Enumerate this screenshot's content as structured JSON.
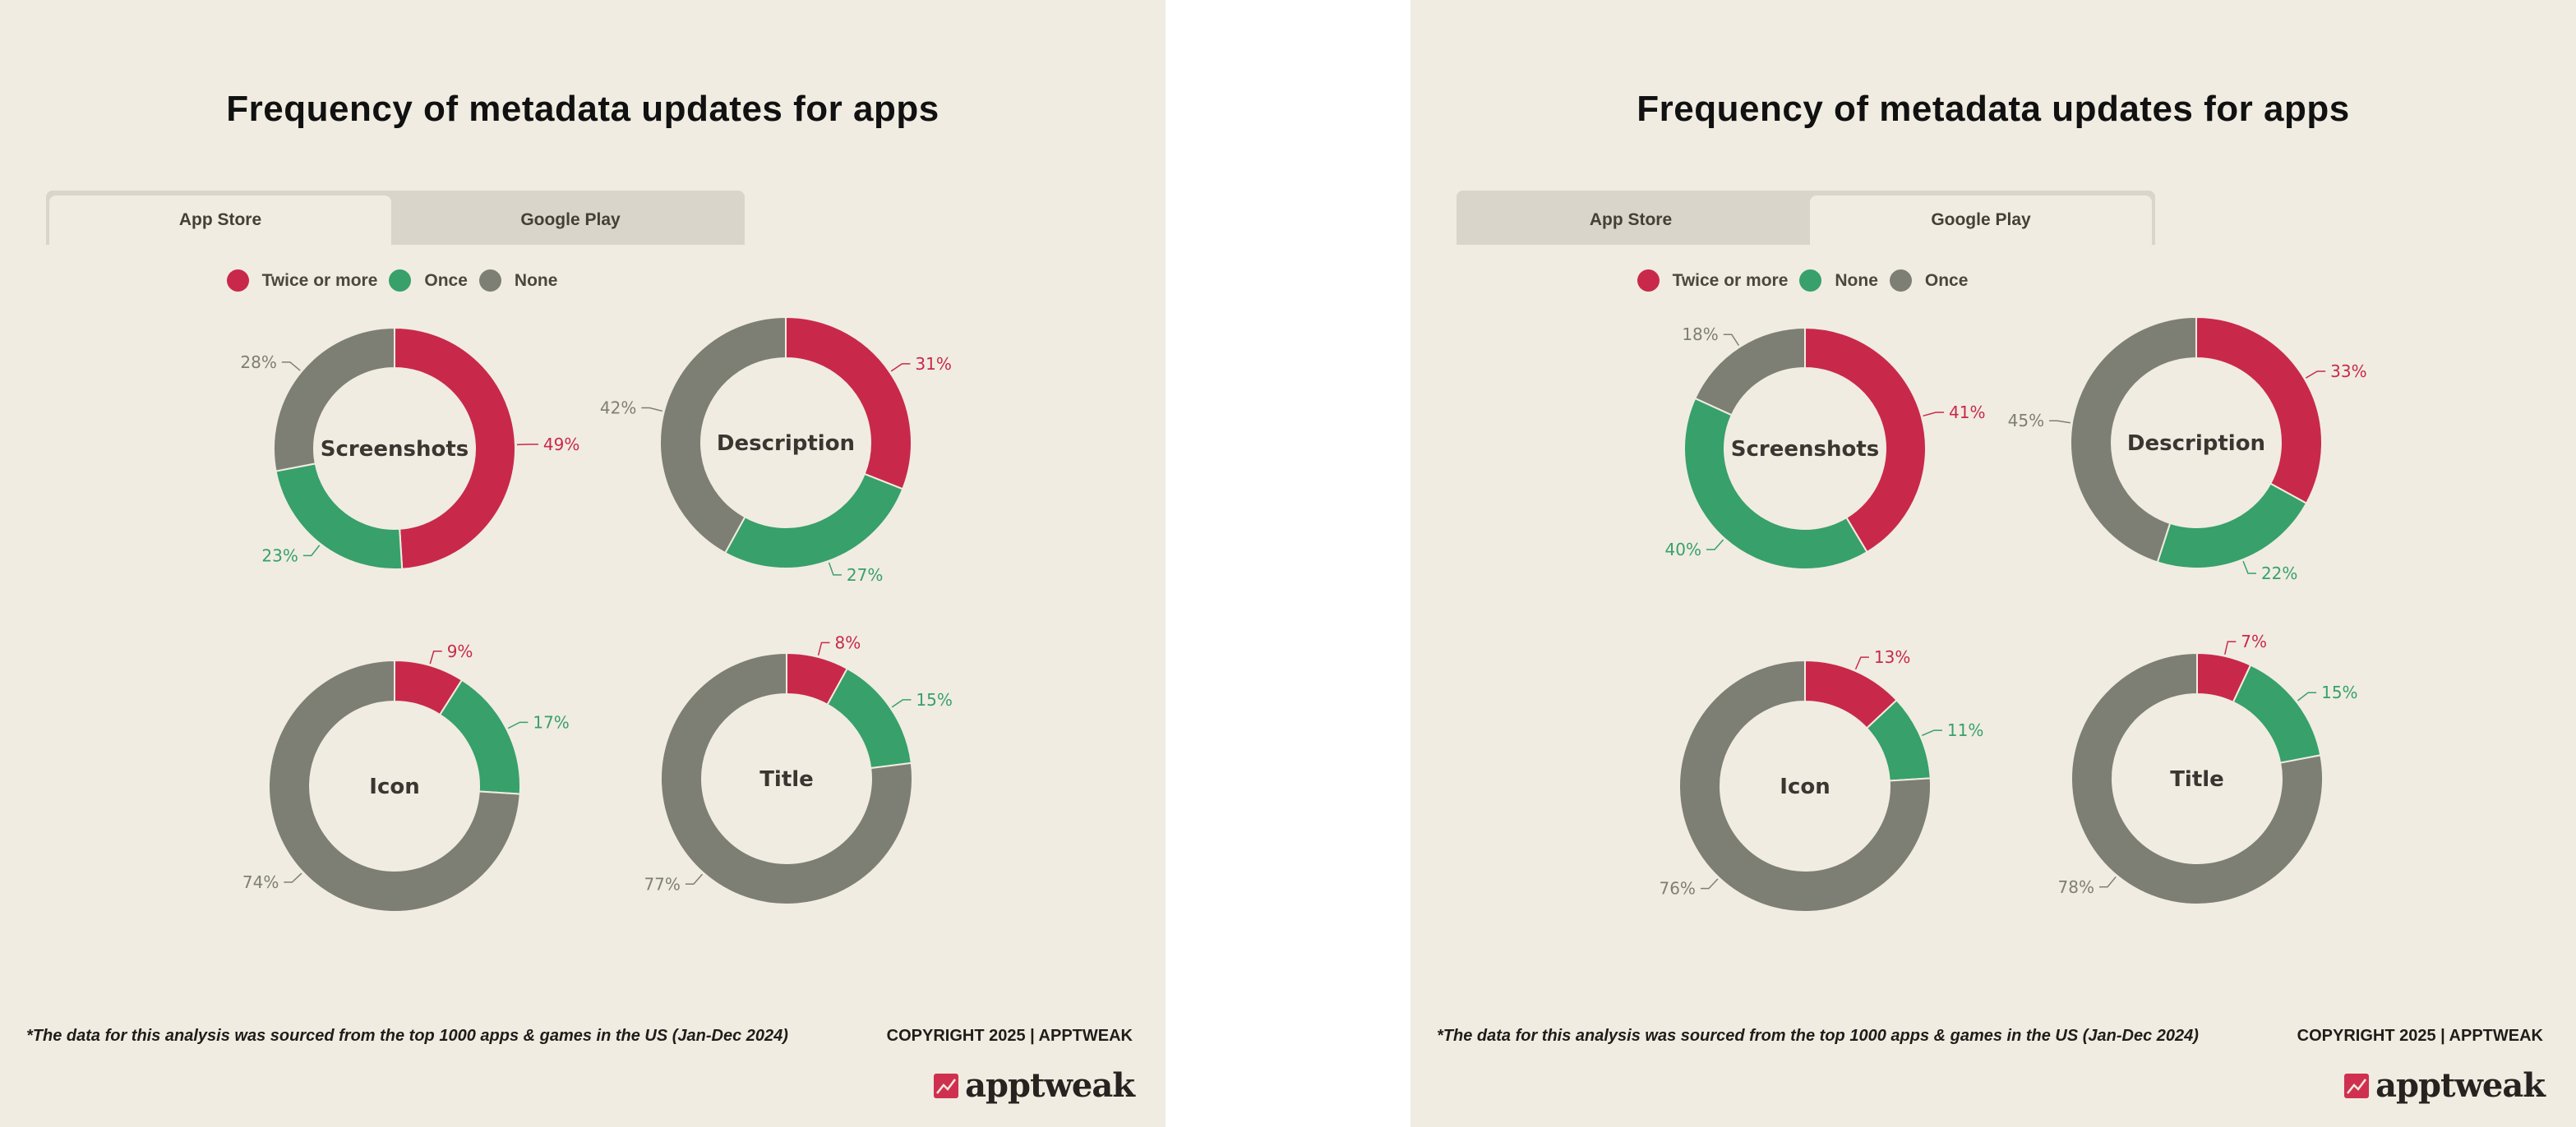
{
  "colors": {
    "background": "#f0ece1",
    "red": "#c8294a",
    "green": "#38a06a",
    "gray": "#7e7f74",
    "tab_inactive": "#d9d5ca"
  },
  "panels": [
    {
      "title": "Frequency of metadata updates for apps",
      "tabs": [
        {
          "label": "App Store",
          "active": true
        },
        {
          "label": "Google Play",
          "active": false
        }
      ],
      "legend": [
        {
          "label": "Twice or more",
          "color": "#c8294a"
        },
        {
          "label": "Once",
          "color": "#38a06a"
        },
        {
          "label": "None",
          "color": "#7e7f74"
        }
      ],
      "footnote": "*The data for this analysis was sourced from the top 1000 apps & games in the US (Jan-Dec 2024)",
      "copyright": "COPYRIGHT 2025 | APPTWEAK",
      "logo": "apptweak"
    },
    {
      "title": "Frequency of metadata updates for apps",
      "tabs": [
        {
          "label": "App Store",
          "active": false
        },
        {
          "label": "Google Play",
          "active": true
        }
      ],
      "legend": [
        {
          "label": "Twice or more",
          "color": "#c8294a"
        },
        {
          "label": "None",
          "color": "#38a06a"
        },
        {
          "label": "Once",
          "color": "#7e7f74"
        }
      ],
      "footnote": "*The data for this analysis was sourced from the top 1000 apps & games in the US (Jan-Dec 2024)",
      "copyright": "COPYRIGHT 2025 | APPTWEAK",
      "logo": "apptweak"
    }
  ],
  "chart_data": [
    {
      "type": "pie",
      "title": "Frequency of metadata updates for apps — App Store",
      "legend_position": "top",
      "series_labels": [
        "Twice or more",
        "Once",
        "None"
      ],
      "charts": [
        {
          "name": "Screenshots",
          "values": [
            49,
            23,
            28
          ],
          "labels": [
            "49%",
            "23%",
            "28%"
          ]
        },
        {
          "name": "Description",
          "values": [
            31,
            27,
            42
          ],
          "labels": [
            "31%",
            "27%",
            "42%"
          ]
        },
        {
          "name": "Icon",
          "values": [
            9,
            17,
            74
          ],
          "labels": [
            "9%",
            "17%",
            "74%"
          ]
        },
        {
          "name": "Title",
          "values": [
            8,
            15,
            77
          ],
          "labels": [
            "8%",
            "15%",
            "77%"
          ]
        }
      ]
    },
    {
      "type": "pie",
      "title": "Frequency of metadata updates for apps — Google Play",
      "legend_position": "top",
      "series_labels": [
        "Twice or more",
        "None",
        "Once"
      ],
      "charts": [
        {
          "name": "Screenshots",
          "values": [
            41,
            40,
            18
          ],
          "labels": [
            "41%",
            "40%",
            "18%"
          ]
        },
        {
          "name": "Description",
          "values": [
            33,
            22,
            45
          ],
          "labels": [
            "33%",
            "22%",
            "45%"
          ]
        },
        {
          "name": "Icon",
          "values": [
            13,
            11,
            76
          ],
          "labels": [
            "13%",
            "11%",
            "76%"
          ]
        },
        {
          "name": "Title",
          "values": [
            7,
            15,
            78
          ],
          "labels": [
            "7%",
            "15%",
            "78%"
          ]
        }
      ]
    }
  ]
}
